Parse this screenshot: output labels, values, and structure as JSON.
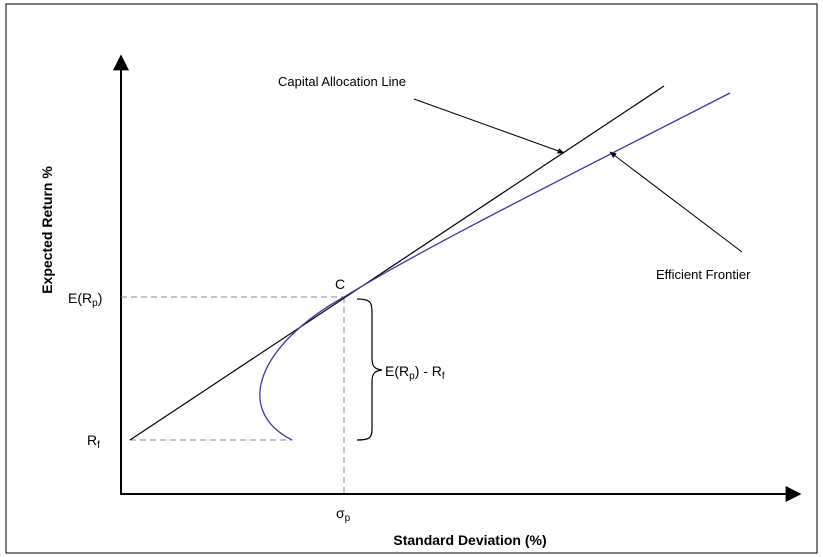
{
  "axes": {
    "x_title": "Standard Deviation (%)",
    "y_title": "Expected Return %"
  },
  "labels": {
    "cal": "Capital Allocation Line",
    "frontier": "Efficient Frontier",
    "point_c": "C"
  },
  "ticks": {
    "y_high": {
      "base": "E(R",
      "sub": "p",
      "close": ")"
    },
    "y_low": {
      "base": "R",
      "sub": "f"
    },
    "x": {
      "base": "σ",
      "sub": "p"
    }
  },
  "brace_label": {
    "part1": "E(R",
    "sub1": "p",
    "part2": ") - R",
    "sub2": "f"
  },
  "colors": {
    "frontier": "#3a3aa8",
    "lines": "#000000",
    "guides": "#8a8a8a"
  }
}
